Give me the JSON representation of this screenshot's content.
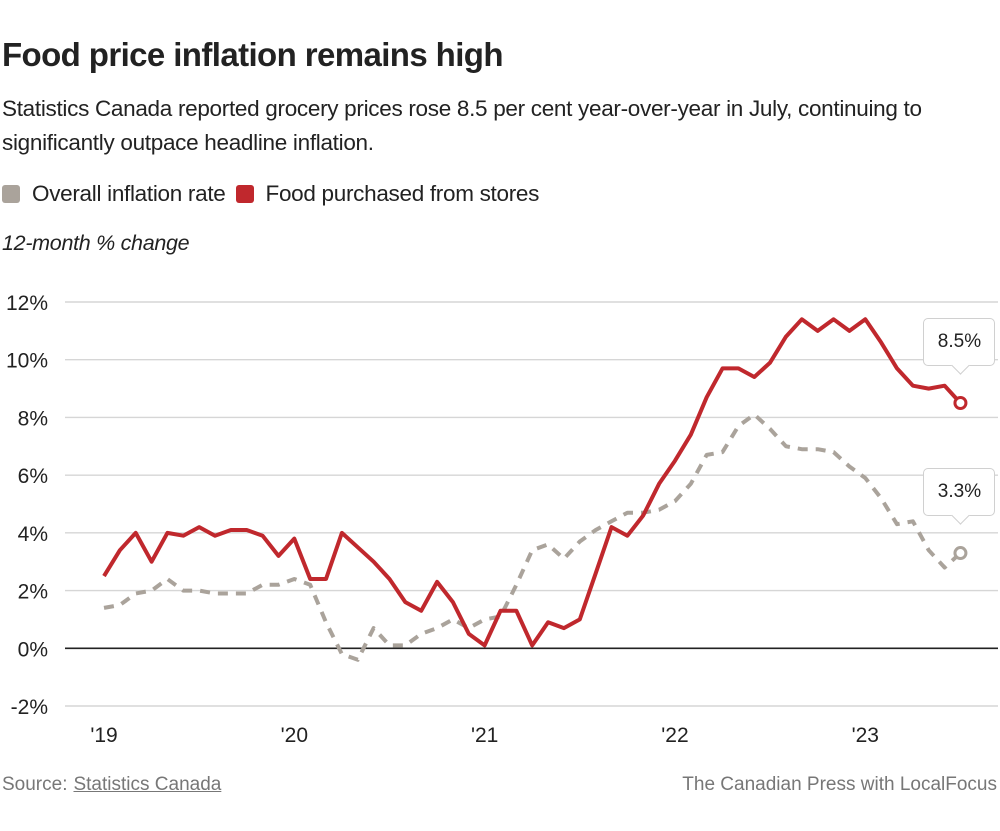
{
  "header": {
    "title": "Food price inflation remains high",
    "subtitle": "Statistics Canada reported grocery prices rose 8.5 per cent year-over-year in July, continuing to significantly outpace headline inflation."
  },
  "legend": [
    {
      "label": "Overall inflation rate",
      "color": "#aaa39b"
    },
    {
      "label": "Food purchased from stores",
      "color": "#c0282d"
    }
  ],
  "footer": {
    "source_prefix": "Source:",
    "source_link": "Statistics Canada",
    "credit": "The Canadian Press with LocalFocus"
  },
  "chart_data": {
    "type": "line",
    "title": "Food price inflation remains high",
    "xlabel": "",
    "ylabel": "12-month % change",
    "ylim": [
      -2,
      12
    ],
    "yticks": [
      12,
      10,
      8,
      6,
      4,
      2,
      0,
      -2
    ],
    "ytick_labels": [
      "12%",
      "10%",
      "8%",
      "6%",
      "4%",
      "2%",
      "0%",
      "-2%"
    ],
    "x_start": "2019-01",
    "x_end": "2023-07",
    "x_frequency": "monthly",
    "xtick_labels": [
      "'19",
      "'20",
      "'21",
      "'22",
      "'23"
    ],
    "xtick_month_index": [
      0,
      12,
      24,
      36,
      48
    ],
    "grid": true,
    "legend_position": "top-left",
    "series": [
      {
        "name": "Overall inflation rate",
        "color": "#aaa39b",
        "style": "dashed",
        "values": [
          1.4,
          1.5,
          1.9,
          2.0,
          2.4,
          2.0,
          2.0,
          1.9,
          1.9,
          1.9,
          2.2,
          2.2,
          2.4,
          2.2,
          0.9,
          -0.2,
          -0.4,
          0.7,
          0.1,
          0.1,
          0.5,
          0.7,
          1.0,
          0.7,
          1.0,
          1.1,
          2.2,
          3.4,
          3.6,
          3.1,
          3.7,
          4.1,
          4.4,
          4.7,
          4.7,
          4.8,
          5.1,
          5.7,
          6.7,
          6.8,
          7.7,
          8.1,
          7.6,
          7.0,
          6.9,
          6.9,
          6.8,
          6.3,
          5.9,
          5.2,
          4.3,
          4.4,
          3.4,
          2.8,
          3.3
        ],
        "end_label": "3.3%"
      },
      {
        "name": "Food purchased from stores",
        "color": "#c0282d",
        "style": "solid",
        "values": [
          2.5,
          3.4,
          4.0,
          3.0,
          4.0,
          3.9,
          4.2,
          3.9,
          4.1,
          4.1,
          3.9,
          3.2,
          3.8,
          2.4,
          2.4,
          4.0,
          3.5,
          3.0,
          2.4,
          1.6,
          1.3,
          2.3,
          1.6,
          0.5,
          0.1,
          1.3,
          1.3,
          0.1,
          0.9,
          0.7,
          1.0,
          2.6,
          4.2,
          3.9,
          4.6,
          5.7,
          6.5,
          7.4,
          8.7,
          9.7,
          9.7,
          9.4,
          9.9,
          10.8,
          11.4,
          11.0,
          11.4,
          11.0,
          11.4,
          10.6,
          9.7,
          9.1,
          9.0,
          9.1,
          8.5
        ],
        "end_label": "8.5%"
      }
    ]
  }
}
